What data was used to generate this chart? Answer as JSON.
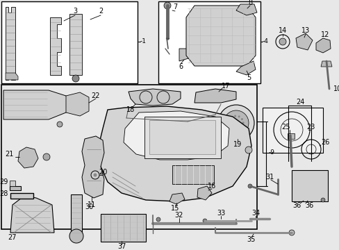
{
  "bg_color": "#e8e8e8",
  "fig_width": 4.89,
  "fig_height": 3.6,
  "dpi": 100
}
